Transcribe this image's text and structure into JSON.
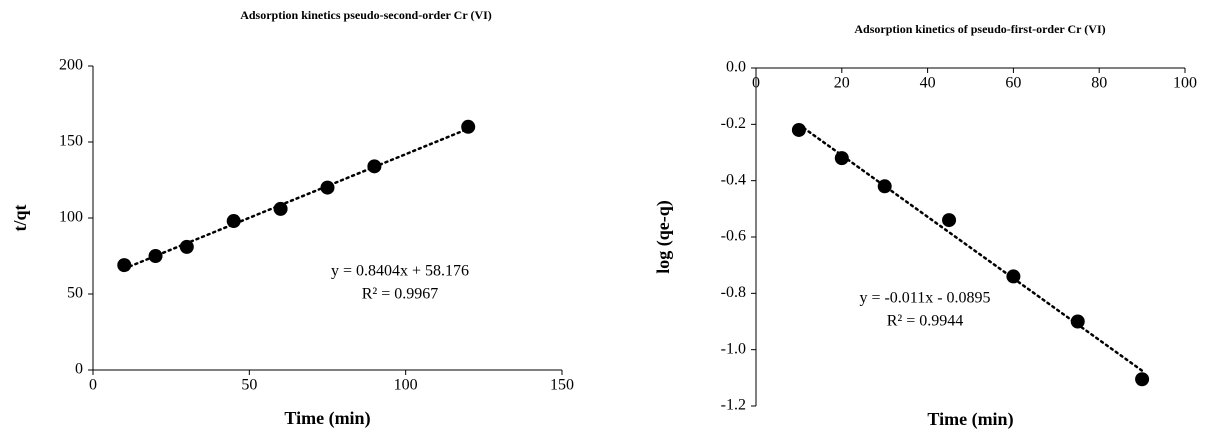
{
  "chart_data": [
    {
      "type": "scatter",
      "title": "Adsorption kinetics pseudo-second-order Cr (VI)",
      "x_label": "Time (min)",
      "y_label": "t/qt",
      "x": [
        10,
        20,
        30,
        45,
        60,
        75,
        90,
        120
      ],
      "values": [
        69,
        75,
        81,
        98,
        106,
        120,
        134,
        160
      ],
      "color": "#000000",
      "trendline": true,
      "annotations": [
        "y = 0.8404x + 58.176",
        "R² = 0.9967"
      ],
      "xlim": [
        0,
        150
      ],
      "xticks": [
        0,
        50,
        100,
        150
      ],
      "ylim": [
        0,
        200
      ],
      "yticks": [
        0,
        50,
        100,
        150,
        200
      ]
    },
    {
      "type": "scatter",
      "title": "Adsorption kinetics of pseudo-first-order Cr (VI)",
      "x_label": "Time (min)",
      "y_label": "log (qe-q)",
      "x": [
        10,
        20,
        30,
        45,
        60,
        75,
        90
      ],
      "values": [
        -0.22,
        -0.32,
        -0.42,
        -0.54,
        -0.74,
        -0.9,
        -1.105
      ],
      "color": "#000000",
      "trendline": true,
      "annotations": [
        "y = -0.011x - 0.0895",
        "R² = 0.9944"
      ],
      "xlim": [
        0,
        100
      ],
      "xticks": [
        0,
        20,
        40,
        60,
        80,
        100
      ],
      "ylim": [
        -1.2,
        0
      ],
      "yticks": [
        {
          "value": 0,
          "label": "0.0"
        },
        -0.2,
        -0.4,
        -0.6,
        -0.8,
        {
          "value": -1,
          "label": "-1.0"
        },
        -1.2
      ]
    }
  ]
}
